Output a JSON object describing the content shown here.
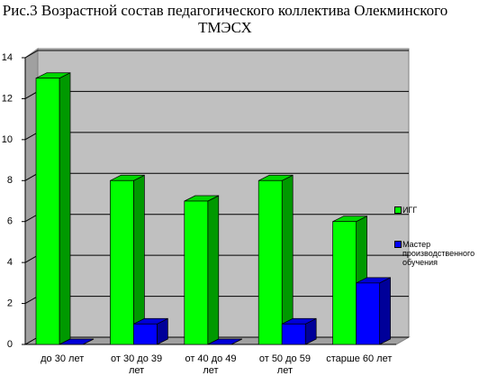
{
  "chart_data": {
    "type": "bar3d",
    "title": "Рис.3 Возрастной состав педагогического коллектива Олекминского ТМЭСХ",
    "categories": [
      "до 30 лет",
      "от 30 до 39 лет",
      "от 40 до 49 лет",
      "от 50 до 59 лет",
      "старше 60 лет"
    ],
    "series": [
      {
        "name": "ИГГ",
        "color": "#00ff00",
        "values": [
          13,
          8,
          7,
          8,
          6
        ]
      },
      {
        "name": "Мастер производственного обучения",
        "color": "#0000ff",
        "values": [
          0,
          1,
          0,
          1,
          3
        ]
      }
    ],
    "ylim": [
      0,
      14
    ],
    "yticks": [
      0,
      2,
      4,
      6,
      8,
      10,
      12,
      14
    ],
    "grid": true
  }
}
